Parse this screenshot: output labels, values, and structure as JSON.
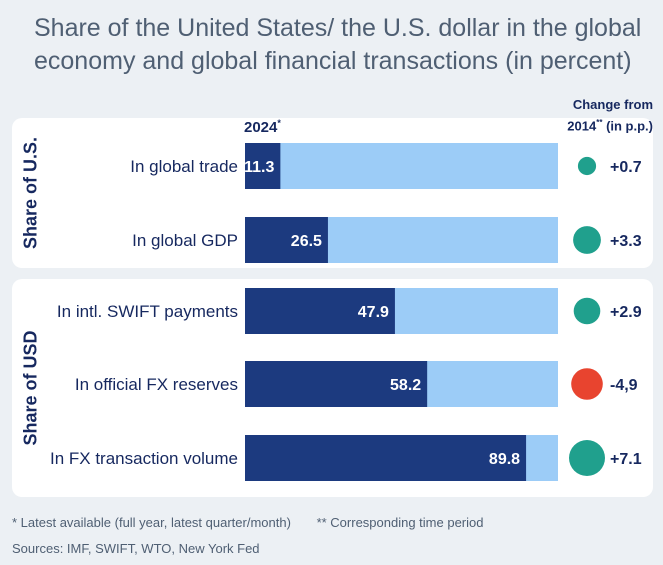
{
  "header": {
    "title": "Share of the United States/ the U.S. dollar in the global economy and global financial transactions (in percent)"
  },
  "year_label": "2024",
  "year_mark": "*",
  "change_header": {
    "line1": "Change from",
    "line2_prefix": "2014",
    "line2_mark": "**",
    "line2_suffix": " (in p.p.)"
  },
  "groups": [
    {
      "label": "Share of U.S."
    },
    {
      "label": "Share of USD"
    }
  ],
  "chart_data": {
    "type": "bar",
    "orientation": "horizontal",
    "categories": [
      "In global trade",
      "In global GDP",
      "In intl. SWIFT payments",
      "In official FX reserves",
      "In FX transaction volume"
    ],
    "values": [
      11.3,
      26.5,
      47.9,
      58.2,
      89.8
    ],
    "value_labels": [
      "11.3",
      "26.5",
      "47.9",
      "58.2",
      "89.8"
    ],
    "changes": [
      0.7,
      3.3,
      2.9,
      -4.9,
      7.1
    ],
    "change_labels": [
      "+0.7",
      "+3.3",
      "+2.9",
      "-4,9",
      "+7.1"
    ],
    "xlim": [
      0,
      100
    ],
    "colors": {
      "bar": "#1c3a7f",
      "remainder": "#9cccf7",
      "positive": "#20a08d",
      "negative": "#e8442f",
      "text_dark": "#16285f"
    }
  },
  "footnotes": {
    "latest": "* Latest available (full year, latest quarter/month)",
    "corresponding": "** Corresponding time period",
    "sources": "Sources: IMF, SWIFT, WTO, New York Fed"
  }
}
